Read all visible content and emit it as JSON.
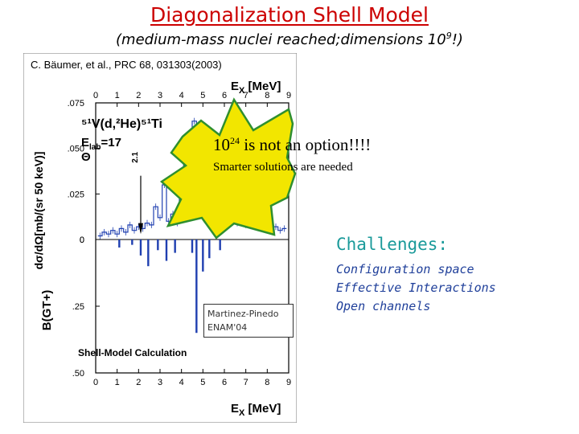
{
  "slide": {
    "title": "Diagonalization Shell Model",
    "subtitle_main": "(medium-mass nuclei reached;dimensions 10",
    "subtitle_exp": "9",
    "subtitle_end": "!)",
    "burst_line1_base": "10",
    "burst_line1_exp": "24",
    "burst_line1_rest": " is not an option!!!!",
    "burst_line2": "Smarter solutions are needed",
    "credit_line1": "Martinez-Pinedo",
    "credit_line2": "ENAM'04",
    "challenges_title": "Challenges:",
    "challenges_items": [
      "Configuration space",
      "Effective Interactions",
      "Open channels"
    ],
    "colors": {
      "title": "#cc0000",
      "burst_fill": "#f2e600",
      "burst_stroke": "#2f8f2f",
      "data": "#1f3fb0",
      "challenges": "#1a9a9a"
    }
  },
  "chart_data": {
    "type": "bar",
    "reference": "C. Bäumer, et al., PRC 68, 031303(2003)",
    "x_axis_label_prefix": "E",
    "x_axis_label_sub": "X",
    "x_axis_label_unit": " [MeV]",
    "xlim": [
      0,
      9
    ],
    "x_ticks": [
      "0",
      "1",
      "2",
      "3",
      "4",
      "5",
      "6",
      "7",
      "8",
      "9"
    ],
    "panels": [
      {
        "name": "experiment",
        "reaction_label": "⁵¹V(d,²He)⁵¹Ti",
        "elab_label": "E",
        "elab_sub": "lab",
        "elab_rest": "=17",
        "angle_label": "Θ",
        "ylabel": "dσ/dΩ[mb/(sr 50 keV)]",
        "ylim": [
          0,
          0.075
        ],
        "y_ticks": [
          ".075",
          ".050",
          ".025",
          "0"
        ],
        "arrow_label": "2.1",
        "x": [
          0.2,
          0.4,
          0.6,
          0.8,
          1.0,
          1.2,
          1.4,
          1.6,
          1.8,
          2.0,
          2.2,
          2.4,
          2.6,
          2.8,
          3.0,
          3.2,
          3.4,
          3.6,
          3.8,
          4.0,
          4.2,
          4.4,
          4.6,
          4.8,
          5.0,
          5.2,
          5.4,
          5.6,
          5.8,
          6.0,
          6.2,
          6.4,
          6.6,
          6.8,
          7.0,
          7.2,
          7.4,
          7.6,
          7.8,
          8.0,
          8.2,
          8.4,
          8.6,
          8.8
        ],
        "values": [
          0.002,
          0.004,
          0.003,
          0.005,
          0.003,
          0.006,
          0.004,
          0.008,
          0.005,
          0.007,
          0.006,
          0.009,
          0.008,
          0.018,
          0.012,
          0.03,
          0.01,
          0.014,
          0.009,
          0.022,
          0.045,
          0.028,
          0.065,
          0.018,
          0.04,
          0.025,
          0.02,
          0.016,
          0.012,
          0.015,
          0.01,
          0.013,
          0.009,
          0.011,
          0.008,
          0.01,
          0.007,
          0.009,
          0.006,
          0.008,
          0.006,
          0.007,
          0.005,
          0.006
        ]
      },
      {
        "name": "shell-model",
        "ylabel": "B(GT+)",
        "panel_label": "Shell-Model Calculation",
        "y_ticks": [
          "0",
          ".25",
          ".50"
        ],
        "ylim": [
          0,
          0.5
        ],
        "x": [
          1.1,
          1.7,
          2.1,
          2.45,
          2.9,
          3.3,
          3.7,
          4.5,
          4.7,
          5.0,
          5.3,
          5.8
        ],
        "values": [
          0.03,
          0.02,
          0.06,
          0.1,
          0.04,
          0.08,
          0.05,
          0.05,
          0.35,
          0.12,
          0.07,
          0.04
        ]
      }
    ]
  }
}
